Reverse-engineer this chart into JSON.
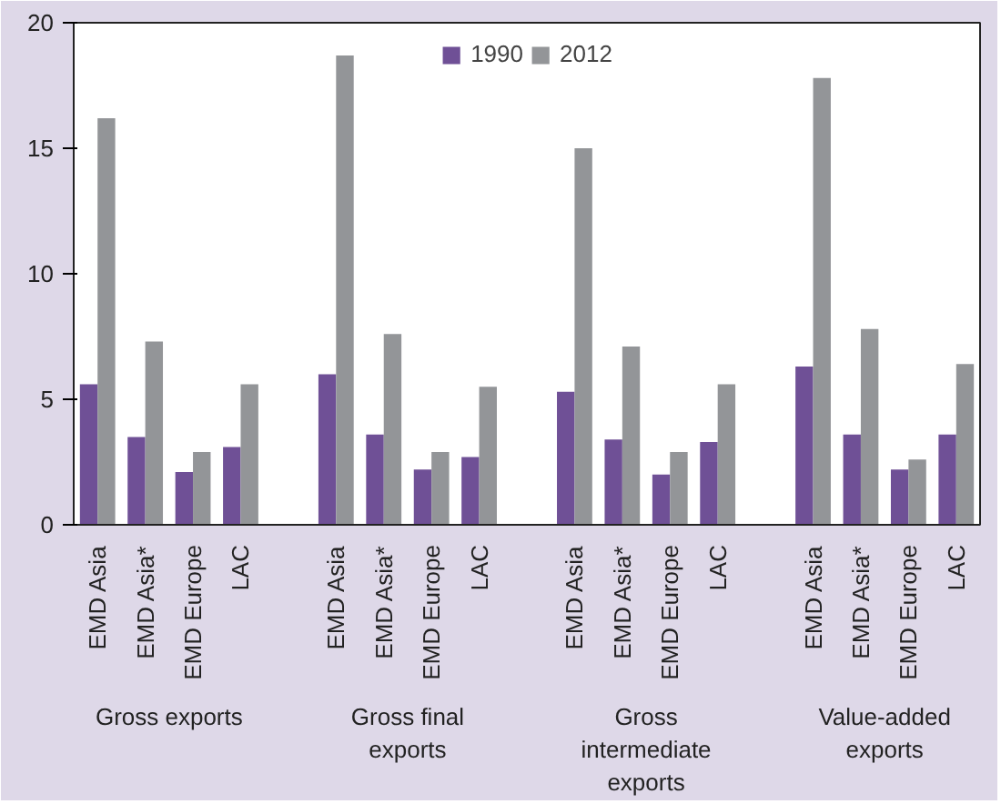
{
  "chart_data": {
    "type": "bar",
    "categories": [
      "EMD Asia",
      "EMD Asia*",
      "EMD Europe",
      "LAC",
      null,
      "EMD Asia",
      "EMD Asia*",
      "EMD Europe",
      "LAC",
      null,
      "EMD Asia",
      "EMD Asia*",
      "EMD Europe",
      "LAC",
      null,
      "EMD Asia",
      "EMD Asia*",
      "EMD Europe",
      "LAC"
    ],
    "series": [
      {
        "name": "1990",
        "color": "#6f5096",
        "values": [
          5.6,
          3.5,
          2.1,
          3.1,
          null,
          6.0,
          3.6,
          2.2,
          2.7,
          null,
          5.3,
          3.4,
          2.0,
          3.3,
          null,
          6.3,
          3.6,
          2.2,
          3.6
        ]
      },
      {
        "name": "2012",
        "color": "#939598",
        "values": [
          16.2,
          7.3,
          2.9,
          5.6,
          null,
          18.7,
          7.6,
          2.9,
          5.5,
          null,
          15.0,
          7.1,
          2.9,
          5.6,
          null,
          17.8,
          7.8,
          2.6,
          6.4
        ]
      }
    ],
    "annotations": [
      "Gross exports",
      "Gross final exports",
      "Gross intermediate exports",
      "Value-added exports"
    ],
    "ylim": [
      0,
      20
    ],
    "yticks": [
      0,
      5,
      10,
      15,
      20
    ],
    "grid": false,
    "legend": "top"
  }
}
